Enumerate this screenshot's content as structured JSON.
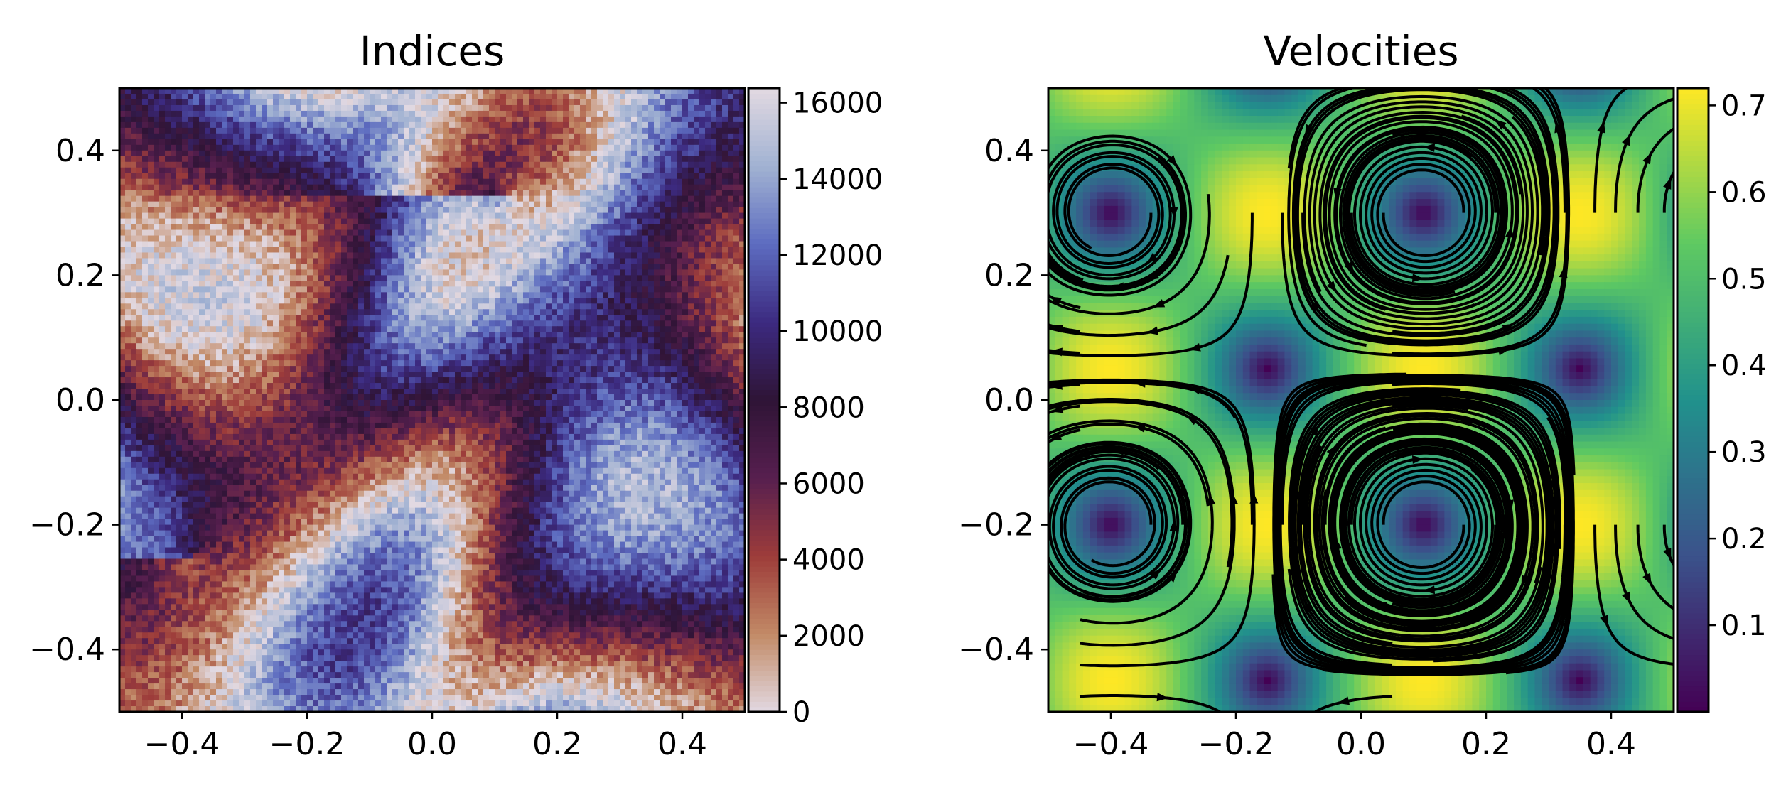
{
  "chart_data": [
    {
      "type": "heatmap",
      "title": "Indices",
      "xlim": [
        -0.5,
        0.5
      ],
      "ylim": [
        -0.5,
        0.5
      ],
      "x_ticks": [
        -0.4,
        -0.2,
        0.0,
        0.2,
        0.4
      ],
      "x_tick_labels": [
        "−0.4",
        "−0.2",
        "0.0",
        "0.2",
        "0.4"
      ],
      "y_ticks": [
        0.4,
        0.2,
        0.0,
        -0.2,
        -0.4
      ],
      "y_tick_labels": [
        "0.4",
        "0.2",
        "0.0",
        "−0.2",
        "−0.4"
      ],
      "colorbar": {
        "colormap": "twilight",
        "range": [
          0,
          16384
        ],
        "ticks": [
          0,
          2000,
          4000,
          6000,
          8000,
          10000,
          12000,
          14000,
          16000
        ],
        "tick_labels": [
          "0",
          "2000",
          "4000",
          "6000",
          "8000",
          "10000",
          "12000",
          "14000",
          "16000"
        ],
        "colors": [
          "#e2d9e2",
          "#c28a66",
          "#9d3c3a",
          "#571f4f",
          "#2f1436",
          "#3c2a80",
          "#5d6cc0",
          "#a1b2d2",
          "#e2d9e2"
        ]
      },
      "grid": false
    },
    {
      "type": "heatmap",
      "title": "Velocities",
      "overlay": "streamlines",
      "xlim": [
        -0.5,
        0.5
      ],
      "ylim": [
        -0.5,
        0.5
      ],
      "x_ticks": [
        -0.4,
        -0.2,
        0.0,
        0.2,
        0.4
      ],
      "x_tick_labels": [
        "−0.4",
        "−0.2",
        "0.0",
        "0.2",
        "0.4"
      ],
      "y_ticks": [
        0.4,
        0.2,
        0.0,
        -0.2,
        -0.4
      ],
      "y_tick_labels": [
        "0.4",
        "0.2",
        "0.0",
        "−0.2",
        "−0.4"
      ],
      "vortex_centers": [
        [
          0.1,
          0.3
        ],
        [
          -0.4,
          -0.25
        ]
      ],
      "saddle_points": [
        [
          -0.4,
          0.3
        ],
        [
          0.1,
          -0.2
        ]
      ],
      "colorbar": {
        "colormap": "viridis",
        "range": [
          0.0,
          0.72
        ],
        "ticks": [
          0.1,
          0.2,
          0.3,
          0.4,
          0.5,
          0.6,
          0.7
        ],
        "tick_labels": [
          "0.1",
          "0.2",
          "0.3",
          "0.4",
          "0.5",
          "0.6",
          "0.7"
        ],
        "colors": [
          "#440154",
          "#3b528b",
          "#21918c",
          "#5ec962",
          "#fde725"
        ]
      },
      "grid": false
    }
  ]
}
